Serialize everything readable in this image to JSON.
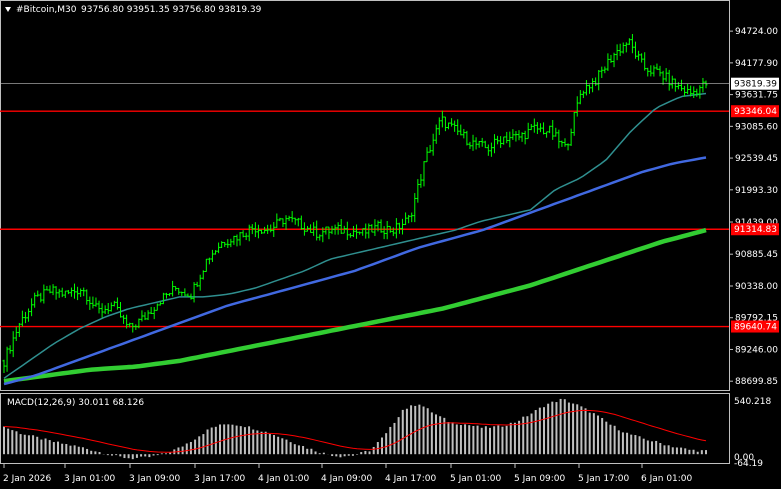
{
  "header": {
    "title": "#Bitcoin,M30",
    "ohlc": "93756.80 93951.35 93756.80 93819.39",
    "menu_icon": "triangle-down-icon"
  },
  "indicator": {
    "label": "MACD(12,26,9) 30.011 68.126",
    "axis_labels": [
      "540.218",
      "0.00",
      "-64.19"
    ]
  },
  "price_axis": {
    "labels": [
      "94724.00",
      "94177.90",
      "93631.75",
      "93085.60",
      "92539.45",
      "91993.30",
      "91439.00",
      "90885.45",
      "90338.00",
      "89792.15",
      "89246.00",
      "88699.85"
    ],
    "current_price": "93819.39",
    "levels": [
      "93346.04",
      "91314.83",
      "89640.74"
    ]
  },
  "time_axis": {
    "labels": [
      "2 Jan 2026",
      "3 Jan 01:00",
      "3 Jan 09:00",
      "3 Jan 17:00",
      "4 Jan 01:00",
      "4 Jan 09:00",
      "4 Jan 17:00",
      "5 Jan 01:00",
      "5 Jan 09:00",
      "5 Jan 17:00",
      "6 Jan 01:00"
    ]
  },
  "colors": {
    "background": "#000000",
    "axis": "#c0c0c0",
    "candles": "#00ff00",
    "level_line": "#ff0000",
    "level_label_bg": "#ff0000",
    "ma_fast": "#2f8f8f",
    "ma_mid": "#4169e1",
    "ma_slow": "#32cd32",
    "macd_hist": "#c0c0c0",
    "macd_signal": "#ff0000"
  },
  "chart_data": {
    "type": "line",
    "series_kind": "candlestick",
    "symbol": "#Bitcoin",
    "timeframe": "M30",
    "x_labels": [
      "2 Jan 2026",
      "3 Jan 01:00",
      "3 Jan 09:00",
      "3 Jan 17:00",
      "4 Jan 01:00",
      "4 Jan 09:00",
      "4 Jan 17:00",
      "5 Jan 01:00",
      "5 Jan 09:00",
      "5 Jan 17:00",
      "6 Jan 01:00"
    ],
    "ylim": [
      88600,
      94950
    ],
    "close_path": [
      89050,
      89700,
      90100,
      90250,
      90200,
      90300,
      89900,
      90000,
      89600,
      89800,
      90100,
      90300,
      90200,
      90800,
      91100,
      91200,
      91350,
      91300,
      91500,
      91400,
      91250,
      91300,
      91300,
      91250,
      91350,
      91300,
      91500,
      92500,
      93200,
      93000,
      92800,
      92700,
      92900,
      92900,
      93050,
      93000,
      92700,
      93700,
      93900,
      94300,
      94550,
      94100,
      94000,
      93800,
      93650,
      93819
    ],
    "ma_fast": [
      88750,
      89050,
      89350,
      89600,
      89800,
      89950,
      90050,
      90150,
      90150,
      90200,
      90300,
      90450,
      90600,
      90800,
      90900,
      91000,
      91100,
      91200,
      91300,
      91450,
      91550,
      91650,
      92000,
      92200,
      92500,
      93000,
      93400,
      93600,
      93650
    ],
    "ma_mid": [
      88650,
      88800,
      89000,
      89200,
      89400,
      89600,
      89800,
      90000,
      90150,
      90300,
      90450,
      90600,
      90800,
      91000,
      91150,
      91300,
      91500,
      91700,
      91900,
      92100,
      92300,
      92450,
      92550
    ],
    "ma_slow": [
      88700,
      88800,
      88900,
      88950,
      89050,
      89200,
      89350,
      89500,
      89650,
      89800,
      89950,
      90150,
      90350,
      90600,
      90850,
      91100,
      91300
    ],
    "horizontal_levels": [
      93346.04,
      91314.83,
      89640.74
    ],
    "current_price": 93819.39,
    "macd": {
      "params": "12,26,9",
      "main": 30.011,
      "signal": 68.126,
      "ylim": [
        -64.19,
        540.218
      ]
    }
  }
}
